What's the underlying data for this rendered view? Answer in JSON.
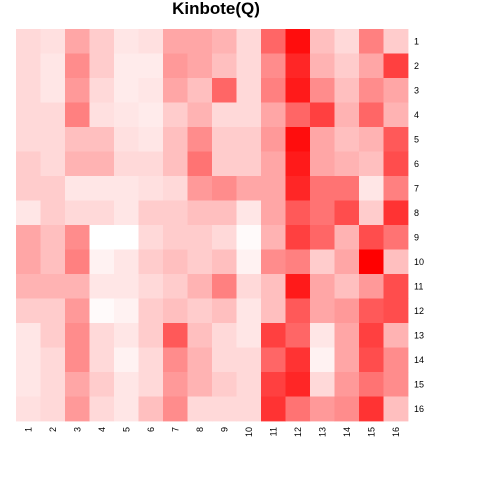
{
  "chart_data": {
    "type": "heatmap",
    "title": "Kinbote(Q)",
    "xlabel": "",
    "ylabel": "",
    "x_labels": [
      "1",
      "2",
      "3",
      "4",
      "5",
      "6",
      "7",
      "8",
      "9",
      "10",
      "11",
      "12",
      "13",
      "14",
      "15",
      "16"
    ],
    "y_labels": [
      "1",
      "2",
      "3",
      "4",
      "5",
      "6",
      "7",
      "8",
      "9",
      "10",
      "11",
      "12",
      "13",
      "14",
      "15",
      "16"
    ],
    "color_scale": {
      "low": "#ffffff",
      "high": "#ff0000"
    },
    "value_range": [
      0,
      1
    ],
    "legend": "none",
    "grid": false,
    "matrix": [
      [
        0.15,
        0.12,
        0.35,
        0.2,
        0.1,
        0.12,
        0.35,
        0.35,
        0.3,
        0.15,
        0.6,
        0.95,
        0.25,
        0.15,
        0.5,
        0.2
      ],
      [
        0.15,
        0.1,
        0.45,
        0.2,
        0.08,
        0.08,
        0.4,
        0.35,
        0.25,
        0.15,
        0.45,
        0.85,
        0.3,
        0.2,
        0.35,
        0.75
      ],
      [
        0.15,
        0.1,
        0.4,
        0.15,
        0.08,
        0.1,
        0.35,
        0.25,
        0.6,
        0.15,
        0.5,
        0.9,
        0.45,
        0.25,
        0.45,
        0.35
      ],
      [
        0.15,
        0.15,
        0.5,
        0.12,
        0.1,
        0.08,
        0.2,
        0.3,
        0.15,
        0.15,
        0.35,
        0.6,
        0.75,
        0.3,
        0.6,
        0.3
      ],
      [
        0.15,
        0.15,
        0.25,
        0.25,
        0.12,
        0.1,
        0.25,
        0.45,
        0.2,
        0.2,
        0.4,
        0.95,
        0.35,
        0.25,
        0.3,
        0.65
      ],
      [
        0.2,
        0.15,
        0.3,
        0.3,
        0.15,
        0.15,
        0.25,
        0.55,
        0.2,
        0.2,
        0.35,
        0.9,
        0.35,
        0.3,
        0.25,
        0.7
      ],
      [
        0.2,
        0.2,
        0.1,
        0.1,
        0.1,
        0.12,
        0.15,
        0.4,
        0.45,
        0.35,
        0.35,
        0.85,
        0.55,
        0.55,
        0.1,
        0.5
      ],
      [
        0.1,
        0.2,
        0.15,
        0.15,
        0.1,
        0.2,
        0.2,
        0.25,
        0.25,
        0.1,
        0.35,
        0.65,
        0.55,
        0.7,
        0.2,
        0.8
      ],
      [
        0.35,
        0.25,
        0.45,
        0.0,
        0.0,
        0.15,
        0.2,
        0.2,
        0.15,
        0.02,
        0.3,
        0.75,
        0.6,
        0.3,
        0.7,
        0.55
      ],
      [
        0.35,
        0.25,
        0.5,
        0.05,
        0.1,
        0.2,
        0.25,
        0.2,
        0.25,
        0.05,
        0.45,
        0.5,
        0.2,
        0.35,
        1.0,
        0.25
      ],
      [
        0.3,
        0.3,
        0.3,
        0.1,
        0.1,
        0.15,
        0.2,
        0.3,
        0.5,
        0.15,
        0.25,
        0.9,
        0.35,
        0.25,
        0.4,
        0.7
      ],
      [
        0.2,
        0.2,
        0.4,
        0.02,
        0.05,
        0.2,
        0.25,
        0.2,
        0.25,
        0.1,
        0.25,
        0.65,
        0.35,
        0.4,
        0.65,
        0.7
      ],
      [
        0.1,
        0.2,
        0.45,
        0.15,
        0.1,
        0.2,
        0.65,
        0.25,
        0.15,
        0.1,
        0.75,
        0.6,
        0.1,
        0.35,
        0.75,
        0.3
      ],
      [
        0.1,
        0.15,
        0.45,
        0.15,
        0.05,
        0.15,
        0.45,
        0.3,
        0.15,
        0.15,
        0.6,
        0.8,
        0.05,
        0.35,
        0.7,
        0.45
      ],
      [
        0.1,
        0.15,
        0.35,
        0.2,
        0.1,
        0.15,
        0.4,
        0.3,
        0.2,
        0.15,
        0.75,
        0.85,
        0.15,
        0.4,
        0.55,
        0.45
      ],
      [
        0.12,
        0.15,
        0.4,
        0.15,
        0.1,
        0.25,
        0.45,
        0.15,
        0.15,
        0.15,
        0.8,
        0.55,
        0.4,
        0.45,
        0.8,
        0.25
      ]
    ]
  }
}
